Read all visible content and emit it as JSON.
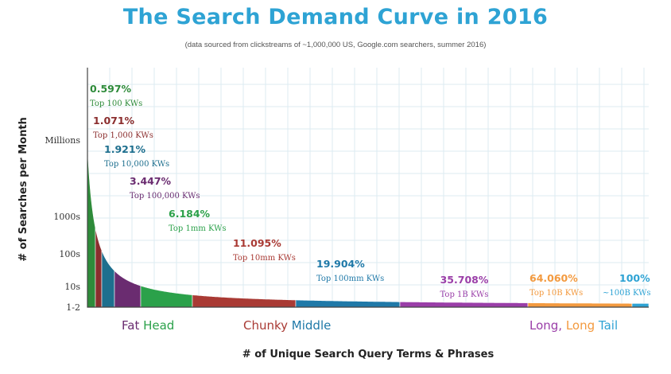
{
  "header": {
    "title": "The Search Demand Curve in 2016",
    "subtitle": "(data sourced from clickstreams of ~1,000,000 US, Google.com searchers, summer 2016)"
  },
  "chart_data": {
    "type": "area",
    "xlabel": "# of Unique Search Query Terms & Phrases",
    "ylabel": "# of Searches per Month",
    "y_ticks": [
      "Millions",
      "1000s",
      "100s",
      "10s",
      "1-2"
    ],
    "grid": true,
    "series": [
      {
        "value": "0.597%",
        "label": "Top 100 KWs",
        "color": "#2e8b3a"
      },
      {
        "value": "1.071%",
        "label": "Top 1,000 KWs",
        "color": "#8b2e2e"
      },
      {
        "value": "1.921%",
        "label": "Top 10,000 KWs",
        "color": "#1e6f8e"
      },
      {
        "value": "3.447%",
        "label": "Top 100,000 KWs",
        "color": "#6a2c70"
      },
      {
        "value": "6.184%",
        "label": "Top 1mm KWs",
        "color": "#2ba14a"
      },
      {
        "value": "11.095%",
        "label": "Top 10mm KWs",
        "color": "#a93a34"
      },
      {
        "value": "19.904%",
        "label": "Top 100mm KWs",
        "color": "#1f79a8"
      },
      {
        "value": "35.708%",
        "label": "Top 1B KWs",
        "color": "#9a3ea8"
      },
      {
        "value": "64.060%",
        "label": "Top 10B KWs",
        "color": "#f39a3f"
      },
      {
        "value": "100%",
        "label": "~100B KWs",
        "color": "#2ea3d4"
      }
    ],
    "regions": [
      [
        {
          "text": "Fat ",
          "color": "#6a2c70"
        },
        {
          "text": "Head",
          "color": "#2ba14a"
        }
      ],
      [
        {
          "text": "Chunky ",
          "color": "#a93a34"
        },
        {
          "text": "Middle",
          "color": "#1f79a8"
        }
      ],
      [
        {
          "text": "Long, ",
          "color": "#9a3ea8"
        },
        {
          "text": "Long ",
          "color": "#f39a3f"
        },
        {
          "text": "Tail",
          "color": "#2ea3d4"
        }
      ]
    ]
  }
}
